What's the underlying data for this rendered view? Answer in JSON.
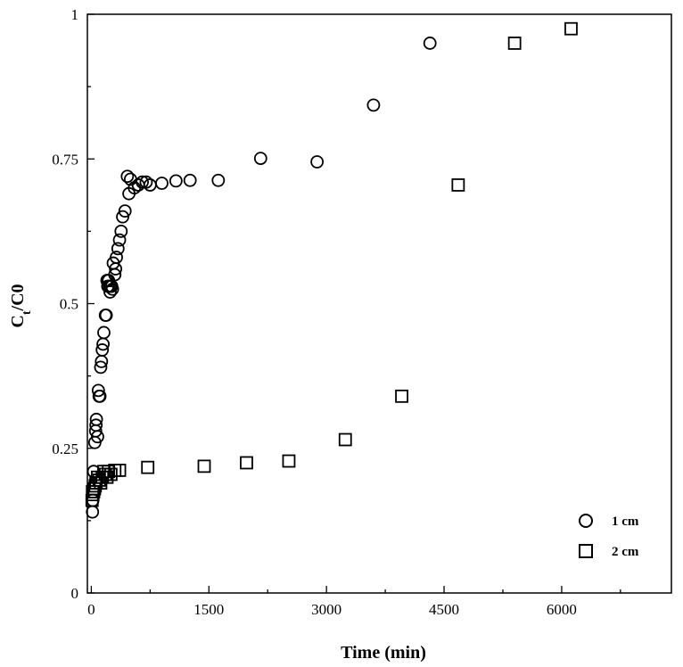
{
  "chart_data": {
    "type": "scatter",
    "title": "",
    "xlabel": "Time (min)",
    "ylabel_main": "C",
    "ylabel_sub": "t",
    "ylabel_rest": "/C0",
    "xlim": [
      -50,
      7400
    ],
    "ylim": [
      0,
      1
    ],
    "x_ticks": [
      0,
      1500,
      3000,
      4500,
      6000
    ],
    "x_tick_labels": [
      "0",
      "1500",
      "3000",
      "4500",
      "6000"
    ],
    "y_ticks": [
      0,
      0.25,
      0.5,
      0.75,
      1
    ],
    "y_tick_labels": [
      "0",
      "0.25",
      "0.5",
      "0.75",
      "1"
    ],
    "grid": false,
    "legend_position": "bottom-right",
    "series": [
      {
        "name": "1 cm",
        "marker": "circle",
        "x": [
          30,
          15,
          20,
          45,
          55,
          60,
          65,
          80,
          90,
          100,
          110,
          120,
          130,
          140,
          150,
          160,
          180,
          190,
          200,
          210,
          220,
          230,
          240,
          250,
          260,
          270,
          280,
          300,
          310,
          320,
          340,
          360,
          380,
          400,
          430,
          460,
          480,
          500,
          550,
          600,
          650,
          700,
          750,
          900,
          1080,
          1260,
          1620,
          2160,
          2880,
          3600,
          4320
        ],
        "y": [
          0.21,
          0.14,
          0.16,
          0.26,
          0.28,
          0.29,
          0.3,
          0.27,
          0.35,
          0.34,
          0.34,
          0.39,
          0.4,
          0.42,
          0.43,
          0.45,
          0.48,
          0.48,
          0.54,
          0.53,
          0.54,
          0.53,
          0.52,
          0.53,
          0.53,
          0.525,
          0.57,
          0.55,
          0.56,
          0.58,
          0.595,
          0.61,
          0.625,
          0.65,
          0.66,
          0.72,
          0.69,
          0.715,
          0.7,
          0.705,
          0.71,
          0.71,
          0.705,
          0.708,
          0.712,
          0.713,
          0.713,
          0.751,
          0.745,
          0.843,
          0.95
        ]
      },
      {
        "name": "2 cm",
        "marker": "square",
        "x": [
          10,
          15,
          20,
          30,
          40,
          50,
          60,
          80,
          100,
          120,
          140,
          160,
          180,
          200,
          220,
          250,
          300,
          360,
          720,
          1440,
          1980,
          2520,
          3240,
          3960,
          4680,
          5400,
          6120
        ],
        "y": [
          0.16,
          0.175,
          0.17,
          0.175,
          0.18,
          0.185,
          0.19,
          0.2,
          0.195,
          0.19,
          0.2,
          0.21,
          0.205,
          0.2,
          0.21,
          0.205,
          0.212,
          0.212,
          0.217,
          0.219,
          0.225,
          0.228,
          0.265,
          0.34,
          0.705,
          0.95,
          0.975
        ]
      }
    ]
  },
  "legend": {
    "items": [
      {
        "label": "1 cm",
        "icon": "circle-marker-icon"
      },
      {
        "label": "2 cm",
        "icon": "square-marker-icon"
      }
    ]
  }
}
